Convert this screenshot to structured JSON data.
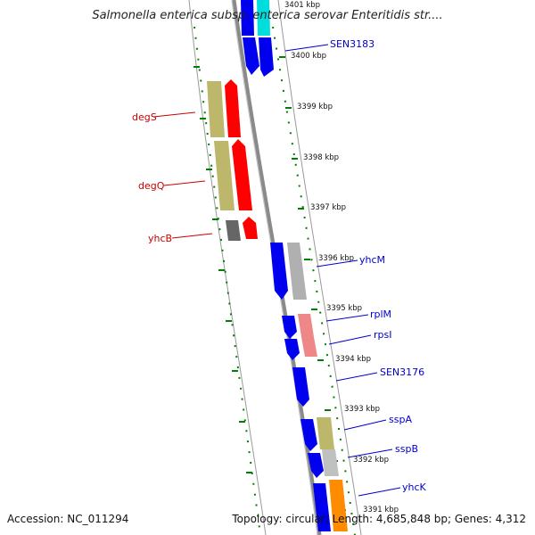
{
  "title": "Salmonella enterica subsp. enterica serovar Enteritidis str....",
  "footer": {
    "accession": "Accession: NC_011294",
    "summary": "Topology: circular; Length: 4,685,848 bp; Genes: 4,312"
  },
  "kbp_labels": [
    {
      "text": "3401 kbp"
    },
    {
      "text": "3400 kbp"
    },
    {
      "text": "3399 kbp"
    },
    {
      "text": "3398 kbp"
    },
    {
      "text": "3397 kbp"
    },
    {
      "text": "3396 kbp"
    },
    {
      "text": "3395 kbp"
    },
    {
      "text": "3394 kbp"
    },
    {
      "text": "3393 kbp"
    },
    {
      "text": "3392 kbp"
    },
    {
      "text": "3391 kbp"
    }
  ],
  "gene_labels": [
    {
      "text": "SEN3183",
      "color": "#0000cc"
    },
    {
      "text": "degS",
      "color": "#cc0000"
    },
    {
      "text": "degQ",
      "color": "#cc0000"
    },
    {
      "text": "yhcB",
      "color": "#cc0000"
    },
    {
      "text": "yhcM",
      "color": "#0000cc"
    },
    {
      "text": "rplM",
      "color": "#0000cc"
    },
    {
      "text": "rpsI",
      "color": "#0000cc"
    },
    {
      "text": "SEN3176",
      "color": "#0000cc"
    },
    {
      "text": "sspA",
      "color": "#0000cc"
    },
    {
      "text": "sspB",
      "color": "#0000cc"
    },
    {
      "text": "yhcK",
      "color": "#0000cc"
    }
  ],
  "colors": {
    "backbone": "#808080",
    "tick_green": "#008000",
    "gene_blue": "#0000ee",
    "gene_red": "#ff0000",
    "gene_khaki": "#bdb76b",
    "gene_gray": "#b0b0b0",
    "gene_pink": "#ee8888",
    "gene_cyan": "#00dddd",
    "gene_orange": "#ff8c00"
  }
}
